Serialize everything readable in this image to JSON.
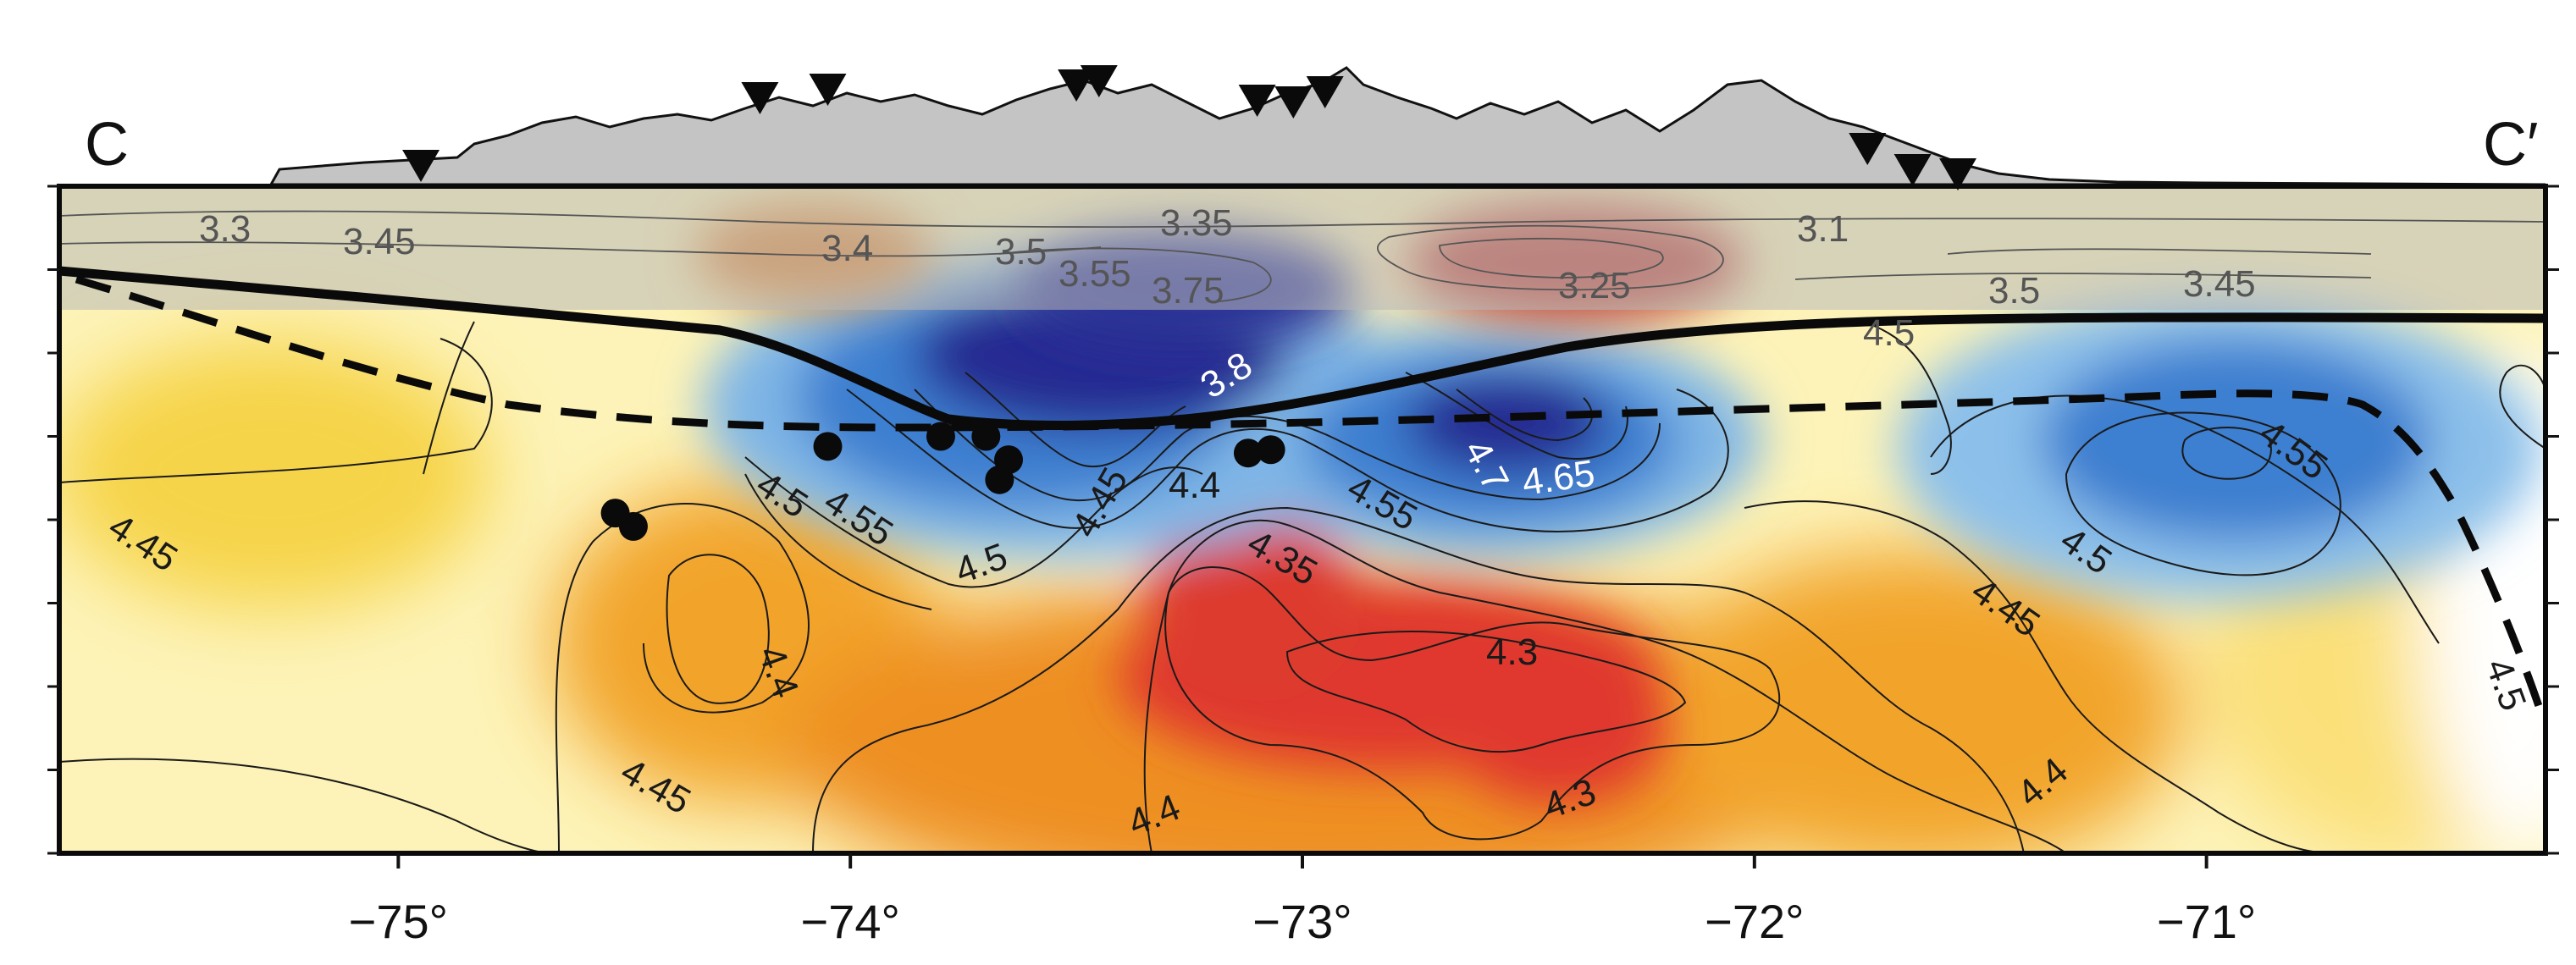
{
  "chart_data": {
    "type": "heatmap",
    "profile_start_label": "C",
    "profile_end_label": "C′",
    "x_axis": {
      "ticks": [
        -75,
        -74,
        -73,
        -72,
        -71
      ],
      "tick_labels": [
        "−75°",
        "−74°",
        "−73°",
        "−72°",
        "−71°"
      ],
      "xlim": [
        -75.75,
        -70.25
      ]
    },
    "colormap": [
      "#d8302a",
      "#e8791a",
      "#f3c22d",
      "#fbe98a",
      "#ffffff",
      "#9cc8ea",
      "#3c7fd0",
      "#252a8f"
    ],
    "crust_contour_labels": [
      "3.3",
      "3.45",
      "3.4",
      "3.5",
      "3.55",
      "3.35",
      "3.75",
      "3.8",
      "3.1",
      "3.25",
      "3.5",
      "3.45",
      "4.5"
    ],
    "mantle_contour_labels": [
      "4.45",
      "4.5",
      "4.55",
      "4.5",
      "4.45",
      "4.4",
      "4.35",
      "4.3",
      "4.3",
      "4.4",
      "4.55",
      "4.7",
      "4.65",
      "4.5",
      "4.45",
      "4.4",
      "4.45",
      "4.4",
      "4.55",
      "4.5"
    ],
    "seismic_stations_lon": [
      -74.95,
      -74.2,
      -74.05,
      -73.5,
      -73.45,
      -73.1,
      -73.02,
      -72.95,
      -71.75,
      -71.65,
      -71.55
    ],
    "earthquakes": [
      {
        "lon": -74.52,
        "rel_depth": 0.49
      },
      {
        "lon": -74.48,
        "rel_depth": 0.51
      },
      {
        "lon": -74.05,
        "rel_depth": 0.39
      },
      {
        "lon": -73.8,
        "rel_depth": 0.375
      },
      {
        "lon": -73.7,
        "rel_depth": 0.375
      },
      {
        "lon": -73.65,
        "rel_depth": 0.41
      },
      {
        "lon": -73.67,
        "rel_depth": 0.44
      },
      {
        "lon": -73.12,
        "rel_depth": 0.4
      },
      {
        "lon": -73.07,
        "rel_depth": 0.395
      }
    ]
  }
}
